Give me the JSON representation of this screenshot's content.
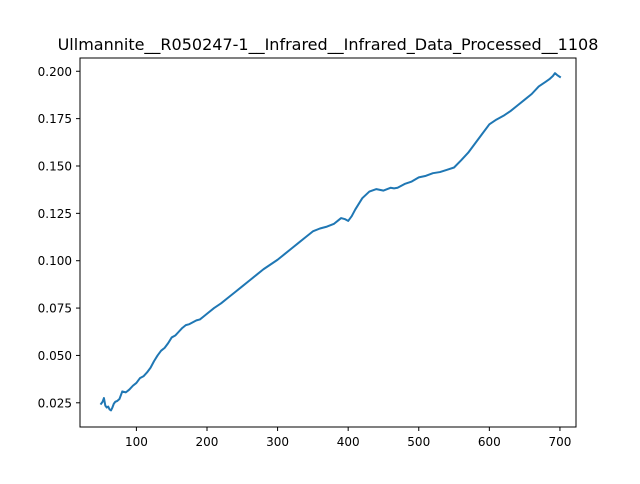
{
  "chart_data": {
    "type": "line",
    "title": "Ullmannite__R050247-1__Infrared__Infrared_Data_Processed__1108",
    "xlabel": "",
    "ylabel": "",
    "xlim": [
      50,
      700
    ],
    "ylim": [
      0.025,
      0.2
    ],
    "x_ticks": [
      100,
      200,
      300,
      400,
      500,
      600,
      700
    ],
    "y_ticks": [
      0.025,
      0.05,
      0.075,
      0.1,
      0.125,
      0.15,
      0.175,
      0.2
    ],
    "x_tick_labels": [
      "100",
      "200",
      "300",
      "400",
      "500",
      "600",
      "700"
    ],
    "y_tick_labels": [
      "0.025",
      "0.050",
      "0.075",
      "0.100",
      "0.125",
      "0.150",
      "0.175",
      "0.200"
    ],
    "grid": false,
    "legend": "none",
    "series": [
      {
        "color": "#1f77b4",
        "x": [
          50,
          52,
          54,
          56,
          58,
          60,
          62,
          64,
          66,
          68,
          70,
          73,
          76,
          80,
          85,
          90,
          95,
          100,
          105,
          110,
          115,
          120,
          125,
          130,
          135,
          140,
          145,
          150,
          155,
          160,
          165,
          170,
          175,
          180,
          185,
          190,
          195,
          200,
          210,
          220,
          230,
          240,
          250,
          260,
          270,
          280,
          290,
          300,
          310,
          320,
          330,
          340,
          350,
          360,
          370,
          380,
          385,
          390,
          395,
          400,
          405,
          410,
          420,
          430,
          440,
          450,
          460,
          465,
          470,
          480,
          490,
          500,
          510,
          520,
          530,
          540,
          550,
          560,
          570,
          580,
          590,
          600,
          610,
          620,
          630,
          640,
          650,
          660,
          670,
          680,
          685,
          690,
          693,
          696,
          700
        ],
        "y": [
          0.0245,
          0.0255,
          0.0275,
          0.0235,
          0.0225,
          0.023,
          0.0215,
          0.021,
          0.0225,
          0.0245,
          0.0255,
          0.026,
          0.027,
          0.031,
          0.0305,
          0.032,
          0.034,
          0.0355,
          0.038,
          0.039,
          0.041,
          0.0435,
          0.047,
          0.05,
          0.0525,
          0.054,
          0.0565,
          0.0595,
          0.0605,
          0.0625,
          0.0645,
          0.066,
          0.0665,
          0.0675,
          0.0685,
          0.069,
          0.0705,
          0.072,
          0.075,
          0.0775,
          0.0805,
          0.0835,
          0.0865,
          0.0895,
          0.0925,
          0.0955,
          0.098,
          0.1005,
          0.1035,
          0.1065,
          0.1095,
          0.1125,
          0.1155,
          0.117,
          0.118,
          0.1195,
          0.121,
          0.1225,
          0.122,
          0.121,
          0.1235,
          0.127,
          0.133,
          0.1365,
          0.1378,
          0.137,
          0.1385,
          0.1382,
          0.1385,
          0.1405,
          0.1418,
          0.144,
          0.1448,
          0.1462,
          0.1468,
          0.148,
          0.1492,
          0.153,
          0.157,
          0.162,
          0.167,
          0.172,
          0.1745,
          0.1765,
          0.179,
          0.182,
          0.185,
          0.188,
          0.192,
          0.1945,
          0.1958,
          0.1975,
          0.199,
          0.198,
          0.197
        ]
      }
    ]
  }
}
